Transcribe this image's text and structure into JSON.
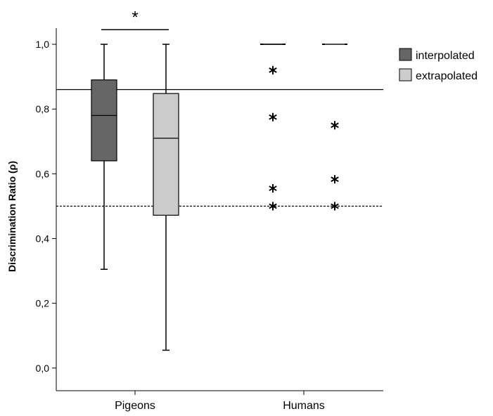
{
  "chart_data": {
    "type": "box",
    "title": "",
    "ylabel": "Discrimination Ratio (ρ)",
    "xlabel": "",
    "ylim": [
      -0.07,
      1.05
    ],
    "yticks": [
      {
        "value": 0.0,
        "label": "0,0"
      },
      {
        "value": 0.2,
        "label": "0,2"
      },
      {
        "value": 0.4,
        "label": "0,4"
      },
      {
        "value": 0.6,
        "label": "0,6"
      },
      {
        "value": 0.8,
        "label": "0,8"
      },
      {
        "value": 1.0,
        "label": "1,0"
      }
    ],
    "categories": [
      "Pigeons",
      "Humans"
    ],
    "series": [
      {
        "name": "interpolated",
        "color": "#666666",
        "boxes": [
          {
            "category": "Pigeons",
            "min": 0.305,
            "q1": 0.64,
            "median": 0.78,
            "q3": 0.89,
            "max": 1.0,
            "outliers": []
          },
          {
            "category": "Humans",
            "min": 1.0,
            "q1": 1.0,
            "median": 1.0,
            "q3": 1.0,
            "max": 1.0,
            "outliers": [
              0.92,
              0.775,
              0.555,
              0.5
            ]
          }
        ]
      },
      {
        "name": "extrapolated",
        "color": "#cccccc",
        "boxes": [
          {
            "category": "Pigeons",
            "min": 0.055,
            "q1": 0.472,
            "median": 0.71,
            "q3": 0.848,
            "max": 1.0,
            "outliers": []
          },
          {
            "category": "Humans",
            "min": 1.0,
            "q1": 1.0,
            "median": 1.0,
            "q3": 1.0,
            "max": 1.0,
            "outliers": [
              0.75,
              0.583,
              0.5
            ]
          }
        ]
      }
    ],
    "reference_lines": [
      {
        "value": 0.86,
        "style": "solid"
      },
      {
        "value": 0.5,
        "style": "dashed"
      }
    ],
    "annotations": [
      {
        "text": "*",
        "between": [
          "interpolated",
          "extrapolated"
        ],
        "category": "Pigeons",
        "y": 1.045
      }
    ],
    "outlier_marker": "*",
    "legend": {
      "position": "right"
    }
  }
}
